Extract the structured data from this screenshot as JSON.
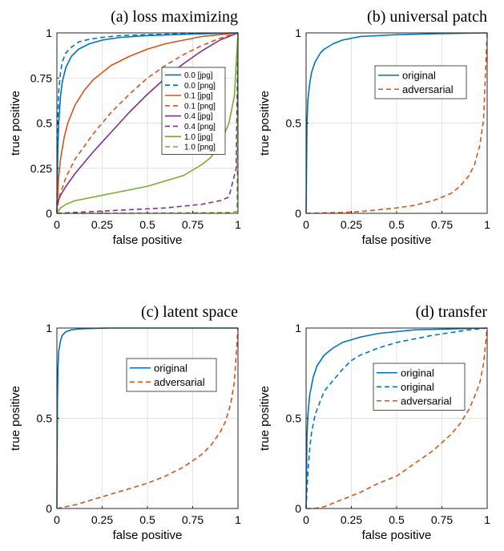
{
  "chart_data": [
    {
      "id": "a",
      "type": "line",
      "title": "(a) loss maximizing",
      "xlabel": "false positive",
      "ylabel": "true positive",
      "xlim": [
        0,
        1
      ],
      "ylim": [
        0,
        1
      ],
      "xticks": [
        "0",
        "0.25",
        "0.5",
        "0.75",
        "1"
      ],
      "yticks": [
        "0",
        "0.25",
        "0.5",
        "0.75",
        "1"
      ],
      "grid": true,
      "legend_position": "center-right",
      "series": [
        {
          "name": "0.0 [jpg]",
          "color": "#0072BD",
          "dash": "solid",
          "x": [
            0,
            0.005,
            0.01,
            0.02,
            0.03,
            0.05,
            0.08,
            0.12,
            0.18,
            0.25,
            0.35,
            0.5,
            0.65,
            0.8,
            1.0
          ],
          "y": [
            0,
            0.35,
            0.5,
            0.65,
            0.73,
            0.81,
            0.87,
            0.91,
            0.94,
            0.96,
            0.975,
            0.985,
            0.99,
            0.995,
            1.0
          ]
        },
        {
          "name": "0.0 [png]",
          "color": "#0072BD",
          "dash": "dashed",
          "x": [
            0,
            0.003,
            0.006,
            0.01,
            0.02,
            0.03,
            0.05,
            0.08,
            0.12,
            0.18,
            0.25,
            0.35,
            0.5,
            0.7,
            1.0
          ],
          "y": [
            0,
            0.4,
            0.55,
            0.68,
            0.78,
            0.84,
            0.89,
            0.92,
            0.95,
            0.965,
            0.975,
            0.985,
            0.99,
            0.995,
            1.0
          ]
        },
        {
          "name": "0.1 [jpg]",
          "color": "#D95319",
          "dash": "solid",
          "x": [
            0,
            0.005,
            0.01,
            0.02,
            0.04,
            0.06,
            0.1,
            0.15,
            0.2,
            0.3,
            0.4,
            0.5,
            0.6,
            0.7,
            0.8,
            0.9,
            1.0
          ],
          "y": [
            0,
            0.1,
            0.2,
            0.3,
            0.42,
            0.5,
            0.6,
            0.68,
            0.74,
            0.82,
            0.87,
            0.91,
            0.94,
            0.96,
            0.98,
            0.99,
            1.0
          ]
        },
        {
          "name": "0.1 [png]",
          "color": "#D95319",
          "dash": "dashed",
          "x": [
            0,
            0.01,
            0.05,
            0.1,
            0.15,
            0.2,
            0.3,
            0.4,
            0.5,
            0.6,
            0.7,
            0.8,
            0.9,
            1.0
          ],
          "y": [
            0,
            0.08,
            0.2,
            0.3,
            0.37,
            0.44,
            0.56,
            0.66,
            0.75,
            0.82,
            0.88,
            0.93,
            0.97,
            1.0
          ]
        },
        {
          "name": "0.4 [jpg]",
          "color": "#7E2F8E",
          "dash": "solid",
          "x": [
            0,
            0.02,
            0.05,
            0.1,
            0.2,
            0.3,
            0.4,
            0.5,
            0.6,
            0.7,
            0.8,
            0.9,
            1.0
          ],
          "y": [
            0.05,
            0.1,
            0.15,
            0.22,
            0.34,
            0.45,
            0.56,
            0.66,
            0.75,
            0.83,
            0.9,
            0.96,
            1.0
          ]
        },
        {
          "name": "0.4 [png]",
          "color": "#7E2F8E",
          "dash": "dashed",
          "x": [
            0,
            0.1,
            0.2,
            0.3,
            0.4,
            0.5,
            0.6,
            0.7,
            0.8,
            0.9,
            0.95,
            0.99,
            1.0
          ],
          "y": [
            0,
            0.005,
            0.01,
            0.015,
            0.02,
            0.025,
            0.03,
            0.04,
            0.05,
            0.07,
            0.09,
            0.25,
            1.0
          ]
        },
        {
          "name": "1.0 [jpg]",
          "color": "#77AC30",
          "dash": "solid",
          "x": [
            0,
            0.02,
            0.05,
            0.1,
            0.2,
            0.3,
            0.4,
            0.5,
            0.6,
            0.7,
            0.8,
            0.85,
            0.9,
            0.95,
            0.98,
            1.0
          ],
          "y": [
            0,
            0.03,
            0.05,
            0.07,
            0.09,
            0.11,
            0.13,
            0.15,
            0.18,
            0.21,
            0.27,
            0.31,
            0.38,
            0.5,
            0.65,
            1.0
          ]
        },
        {
          "name": "1.0 [png]",
          "color": "#77AC30",
          "dash": "dashed",
          "x": [
            0,
            0.2,
            0.4,
            0.6,
            0.8,
            0.95,
            0.995,
            1.0
          ],
          "y": [
            0,
            0.0,
            0.001,
            0.002,
            0.003,
            0.005,
            0.01,
            1.0
          ]
        }
      ]
    },
    {
      "id": "b",
      "type": "line",
      "title": "(b) universal patch",
      "xlabel": "false positive",
      "ylabel": "true positive",
      "xlim": [
        0,
        1
      ],
      "ylim": [
        0,
        1
      ],
      "xticks": [
        "0",
        "0.25",
        "0.5",
        "0.75",
        "1"
      ],
      "yticks": [
        "0",
        "0.5",
        "1"
      ],
      "grid": true,
      "legend_position": "center-right",
      "series": [
        {
          "name": "original",
          "color": "#0072BD",
          "dash": "solid",
          "x": [
            0,
            0.005,
            0.01,
            0.02,
            0.03,
            0.05,
            0.08,
            0.1,
            0.15,
            0.2,
            0.3,
            0.4,
            0.5,
            0.7,
            1.0
          ],
          "y": [
            0,
            0.5,
            0.63,
            0.72,
            0.78,
            0.84,
            0.89,
            0.91,
            0.94,
            0.96,
            0.98,
            0.985,
            0.99,
            0.995,
            1.0
          ]
        },
        {
          "name": "adversarial",
          "color": "#D95319",
          "dash": "dashed",
          "x": [
            0,
            0.2,
            0.3,
            0.4,
            0.5,
            0.6,
            0.7,
            0.8,
            0.85,
            0.9,
            0.93,
            0.96,
            0.98,
            1.0
          ],
          "y": [
            0,
            0.005,
            0.01,
            0.02,
            0.03,
            0.045,
            0.07,
            0.11,
            0.15,
            0.21,
            0.27,
            0.38,
            0.52,
            1.0
          ]
        }
      ]
    },
    {
      "id": "c",
      "type": "line",
      "title": "(c) latent space",
      "xlabel": "false positive",
      "ylabel": "true positive",
      "xlim": [
        0,
        1
      ],
      "ylim": [
        0,
        1
      ],
      "xticks": [
        "0",
        "0.25",
        "0.5",
        "0.75",
        "1"
      ],
      "yticks": [
        "0",
        "0.5",
        "1"
      ],
      "grid": true,
      "legend_position": "center-right",
      "series": [
        {
          "name": "original",
          "color": "#0072BD",
          "dash": "solid",
          "x": [
            0,
            0.003,
            0.006,
            0.01,
            0.02,
            0.03,
            0.05,
            0.08,
            0.12,
            0.2,
            0.3,
            1.0
          ],
          "y": [
            0,
            0.6,
            0.78,
            0.87,
            0.93,
            0.96,
            0.98,
            0.99,
            0.995,
            0.998,
            1.0,
            1.0
          ]
        },
        {
          "name": "adversarial",
          "color": "#D95319",
          "dash": "dashed",
          "x": [
            0,
            0.05,
            0.1,
            0.2,
            0.3,
            0.4,
            0.5,
            0.6,
            0.7,
            0.8,
            0.85,
            0.9,
            0.93,
            0.96,
            0.98,
            1.0
          ],
          "y": [
            0,
            0.01,
            0.02,
            0.05,
            0.08,
            0.11,
            0.14,
            0.18,
            0.23,
            0.3,
            0.35,
            0.42,
            0.48,
            0.58,
            0.7,
            1.0
          ]
        }
      ]
    },
    {
      "id": "d",
      "type": "line",
      "title": "(d) transfer",
      "xlabel": "false positive",
      "ylabel": "true positive",
      "xlim": [
        0,
        1
      ],
      "ylim": [
        0,
        1
      ],
      "xticks": [
        "0",
        "0.25",
        "0.5",
        "0.75",
        "1"
      ],
      "yticks": [
        "0",
        "0.5",
        "1"
      ],
      "grid": true,
      "legend_position": "center-right",
      "series": [
        {
          "name": "original",
          "color": "#0072BD",
          "dash": "solid",
          "x": [
            0,
            0.005,
            0.01,
            0.02,
            0.04,
            0.06,
            0.1,
            0.15,
            0.2,
            0.3,
            0.4,
            0.5,
            0.6,
            0.8,
            1.0
          ],
          "y": [
            0,
            0.4,
            0.52,
            0.63,
            0.73,
            0.79,
            0.85,
            0.89,
            0.92,
            0.95,
            0.97,
            0.98,
            0.99,
            0.995,
            1.0
          ]
        },
        {
          "name": "original",
          "color": "#0072BD",
          "dash": "dashed",
          "x": [
            0,
            0.01,
            0.02,
            0.03,
            0.05,
            0.08,
            0.1,
            0.15,
            0.2,
            0.25,
            0.3,
            0.4,
            0.5,
            0.6,
            0.7,
            0.8,
            0.9,
            1.0
          ],
          "y": [
            0,
            0.2,
            0.33,
            0.42,
            0.52,
            0.6,
            0.65,
            0.71,
            0.77,
            0.82,
            0.85,
            0.89,
            0.92,
            0.94,
            0.96,
            0.975,
            0.99,
            1.0
          ]
        },
        {
          "name": "adversarial",
          "color": "#D95319",
          "dash": "dashed",
          "x": [
            0,
            0.05,
            0.1,
            0.2,
            0.3,
            0.4,
            0.5,
            0.6,
            0.7,
            0.8,
            0.85,
            0.9,
            0.93,
            0.96,
            0.98,
            1.0
          ],
          "y": [
            0,
            0.0,
            0.01,
            0.05,
            0.09,
            0.14,
            0.18,
            0.25,
            0.32,
            0.41,
            0.47,
            0.55,
            0.62,
            0.7,
            0.8,
            1.0
          ]
        }
      ]
    }
  ]
}
